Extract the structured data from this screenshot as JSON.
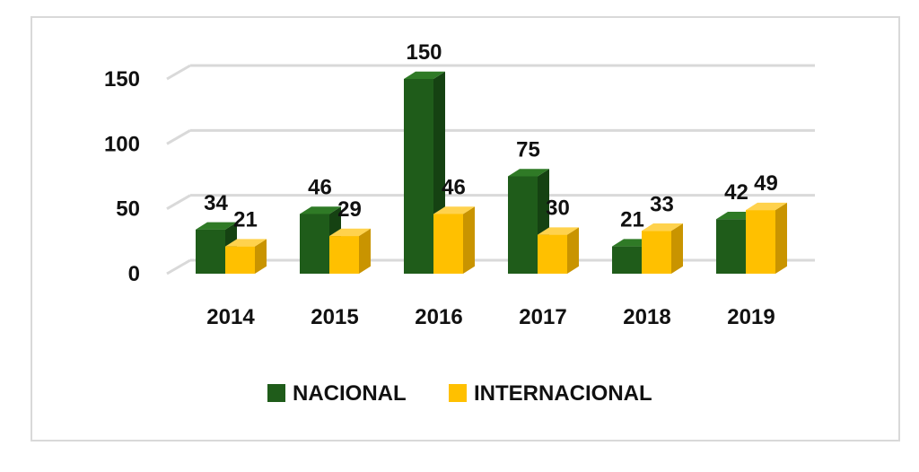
{
  "chart_data": {
    "type": "bar",
    "title": "",
    "xlabel": "",
    "ylabel": "",
    "categories": [
      "2014",
      "2015",
      "2016",
      "2017",
      "2018",
      "2019"
    ],
    "series": [
      {
        "name": "NACIONAL",
        "values": [
          34,
          46,
          150,
          75,
          21,
          42
        ],
        "color": "#1f5c1a",
        "top_color": "#2f7a26",
        "side_color": "#154212"
      },
      {
        "name": "INTERNACIONAL",
        "values": [
          21,
          29,
          46,
          30,
          33,
          49
        ],
        "color": "#ffc000",
        "top_color": "#ffd24d",
        "side_color": "#c99400"
      }
    ],
    "y_ticks": [
      "0",
      "50",
      "100",
      "150"
    ],
    "ylim": [
      0,
      150
    ],
    "grid": true,
    "legend_position": "bottom"
  }
}
